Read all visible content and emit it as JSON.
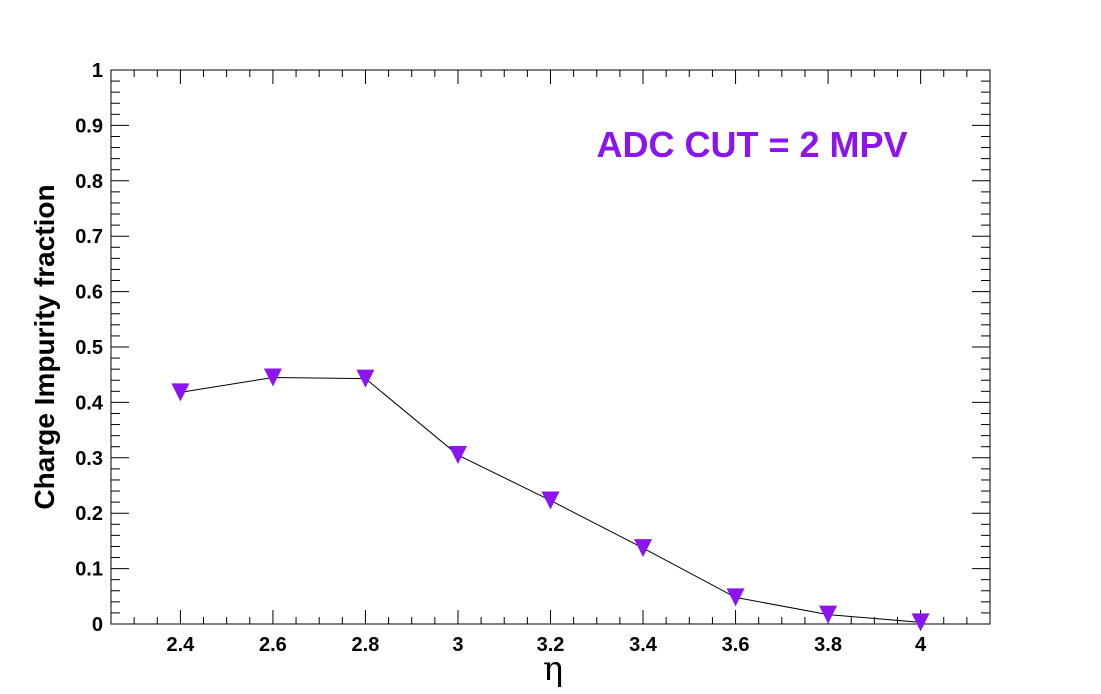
{
  "chart_data": {
    "type": "line",
    "title": "",
    "xlabel": "η",
    "ylabel": "Charge Impurity fraction",
    "xlim": [
      2.25,
      4.15
    ],
    "ylim": [
      0,
      1
    ],
    "x_ticks": [
      "2.4",
      "2.6",
      "2.8",
      "3",
      "3.2",
      "3.4",
      "3.6",
      "3.8",
      "4"
    ],
    "y_ticks": [
      "0",
      "0.1",
      "0.2",
      "0.3",
      "0.4",
      "0.5",
      "0.6",
      "0.7",
      "0.8",
      "0.9",
      "1"
    ],
    "annotation": "ADC CUT = 2 MPV",
    "marker": "inverted-triangle",
    "marker_color": "#8b14f0",
    "line_color": "#000000",
    "grid": false,
    "series": [
      {
        "x": [
          2.4,
          2.6,
          2.8,
          3.0,
          3.2,
          3.4,
          3.6,
          3.8,
          4.0
        ],
        "values": [
          0.418,
          0.445,
          0.443,
          0.305,
          0.223,
          0.137,
          0.048,
          0.017,
          0.003
        ]
      }
    ]
  }
}
